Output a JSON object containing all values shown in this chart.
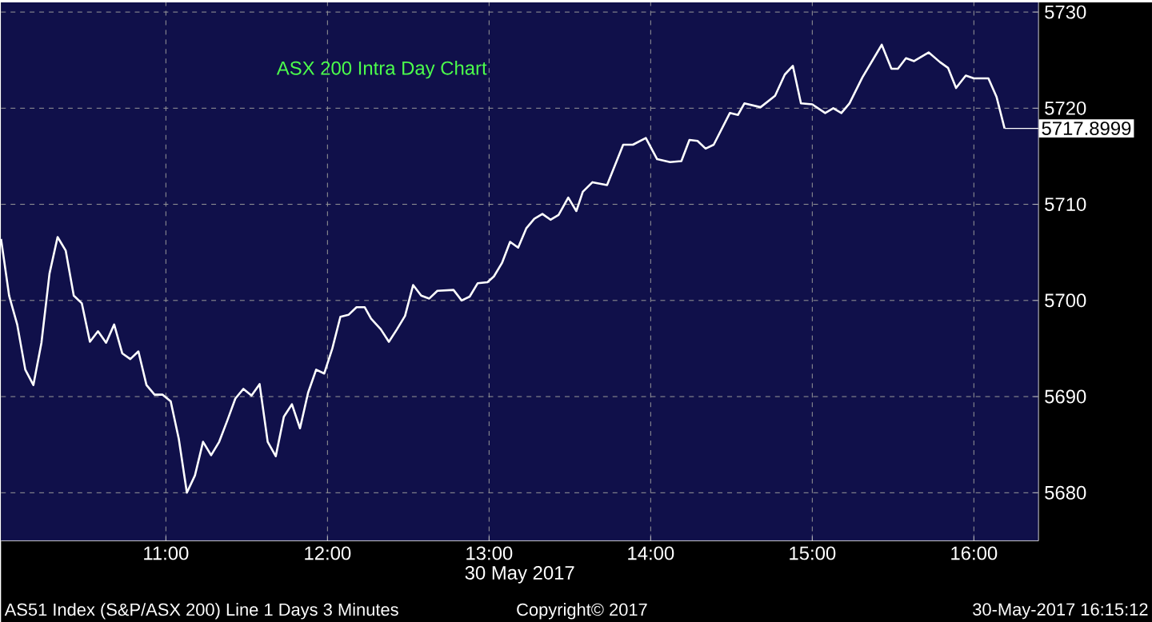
{
  "chart_data": {
    "type": "line",
    "title": "ASX 200 Intra Day Chart",
    "xlabel": "30 May 2017",
    "x": [
      9.98,
      10.03,
      10.08,
      10.13,
      10.18,
      10.23,
      10.28,
      10.33,
      10.38,
      10.43,
      10.48,
      10.53,
      10.58,
      10.63,
      10.68,
      10.73,
      10.78,
      10.83,
      10.88,
      10.93,
      10.98,
      11.03,
      11.08,
      11.13,
      11.18,
      11.23,
      11.28,
      11.33,
      11.38,
      11.43,
      11.48,
      11.53,
      11.58,
      11.63,
      11.68,
      11.73,
      11.78,
      11.83,
      11.88,
      11.93,
      11.98,
      12.03,
      12.08,
      12.13,
      12.18,
      12.23,
      12.27,
      12.33,
      12.38,
      12.43,
      12.48,
      12.53,
      12.58,
      12.63,
      12.68,
      12.78,
      12.83,
      12.88,
      12.93,
      12.99,
      13.03,
      13.08,
      13.13,
      13.18,
      13.23,
      13.28,
      13.33,
      13.38,
      13.43,
      13.49,
      13.54,
      13.58,
      13.64,
      13.73,
      13.83,
      13.89,
      13.97,
      14.04,
      14.12,
      14.19,
      14.24,
      14.29,
      14.34,
      14.39,
      14.49,
      14.54,
      14.58,
      14.68,
      14.77,
      14.83,
      14.88,
      14.93,
      15.0,
      15.08,
      15.13,
      15.18,
      15.23,
      15.31,
      15.43,
      15.49,
      15.53,
      15.58,
      15.63,
      15.72,
      15.79,
      15.84,
      15.89,
      15.95,
      16.0,
      16.09,
      16.14,
      16.19
    ],
    "series": [
      {
        "color": "#ffffff",
        "values": [
          5706.4,
          5700.5,
          5697.5,
          5692.8,
          5691.2,
          5695.6,
          5702.8,
          5706.6,
          5705.2,
          5700.5,
          5699.7,
          5695.7,
          5696.8,
          5695.6,
          5697.5,
          5694.5,
          5693.9,
          5694.7,
          5691.2,
          5690.2,
          5690.2,
          5689.5,
          5685.6,
          5680.0,
          5681.8,
          5685.3,
          5683.9,
          5685.3,
          5687.5,
          5689.8,
          5690.8,
          5690.1,
          5691.3,
          5685.3,
          5683.8,
          5687.9,
          5689.2,
          5686.7,
          5690.4,
          5692.8,
          5692.4,
          5695.0,
          5698.3,
          5698.5,
          5699.3,
          5699.3,
          5698.1,
          5697.0,
          5695.7,
          5697.0,
          5698.4,
          5701.6,
          5700.5,
          5700.2,
          5701.0,
          5701.1,
          5700.0,
          5700.4,
          5701.8,
          5701.9,
          5702.5,
          5703.9,
          5706.1,
          5705.5,
          5707.5,
          5708.5,
          5709.0,
          5708.4,
          5708.9,
          5710.7,
          5709.3,
          5711.3,
          5712.3,
          5712.0,
          5716.2,
          5716.2,
          5716.9,
          5714.7,
          5714.4,
          5714.5,
          5716.7,
          5716.6,
          5715.8,
          5716.2,
          5719.5,
          5719.3,
          5720.5,
          5720.1,
          5721.3,
          5723.5,
          5724.4,
          5720.5,
          5720.4,
          5719.5,
          5720.0,
          5719.5,
          5720.5,
          5723.2,
          5726.6,
          5724.1,
          5724.1,
          5725.2,
          5724.9,
          5725.8,
          5724.8,
          5724.2,
          5722.1,
          5723.4,
          5723.1,
          5723.1,
          5721.2,
          5717.9
        ]
      }
    ],
    "xlim": [
      9.98,
      16.4
    ],
    "ylim": [
      5675,
      5731
    ],
    "xticks": [
      {
        "value": 11,
        "label": "11:00"
      },
      {
        "value": 12,
        "label": "12:00"
      },
      {
        "value": 13,
        "label": "13:00"
      },
      {
        "value": 14,
        "label": "14:00"
      },
      {
        "value": 15,
        "label": "15:00"
      },
      {
        "value": 16,
        "label": "16:00"
      }
    ],
    "yticks": [
      5680,
      5690,
      5700,
      5710,
      5720,
      5730
    ],
    "grid": true,
    "marker": "none",
    "line_style": "solid",
    "annotations": [
      {
        "text": "5717.8999",
        "x": 16.19,
        "y": 5717.9
      },
      "AS51 Index (S&P/ASX 200) Line 1 Days 3 Minutes",
      "Copyright© 2017",
      "30-May-2017 16:15:12"
    ]
  }
}
